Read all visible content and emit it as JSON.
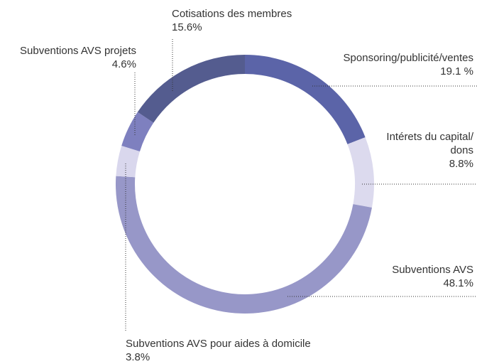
{
  "chart_data": {
    "type": "donut",
    "categories": [
      "Sponsoring/publicité/ventes",
      "Intérets du capital/\ndons",
      "Subventions AVS",
      "Subventions AVS pour aides à domicile",
      "Subventions AVS projets",
      "Cotisations des membres"
    ],
    "values": [
      19.1,
      8.8,
      48.1,
      3.8,
      4.6,
      15.6
    ],
    "value_labels": [
      "19.1 %",
      "8.8%",
      "48.1%",
      "3.8%",
      "4.6%",
      "15.6%"
    ],
    "colors": [
      "#5b64a8",
      "#dcdaee",
      "#9797c8",
      "#d9d7ed",
      "#7e80bf",
      "#545c8f"
    ]
  }
}
